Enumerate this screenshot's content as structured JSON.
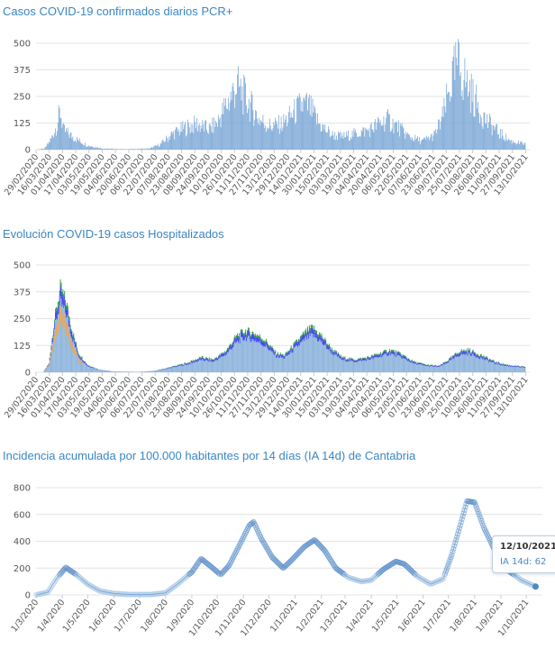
{
  "chart_data": [
    {
      "type": "bar",
      "title": "Casos COVID-19 confirmados diarios PCR+",
      "ylim": [
        0,
        500
      ],
      "yticks": [
        0,
        125,
        250,
        375,
        500
      ],
      "xlim": [
        "2020-02-29",
        "2021-10-18"
      ],
      "xtick_labels": [
        "29/02/2020",
        "16/03/2020",
        "01/04/2020",
        "17/04/2020",
        "03/05/2020",
        "19/05/2020",
        "04/06/2020",
        "20/06/2020",
        "06/07/2020",
        "22/07/2020",
        "07/08/2020",
        "23/08/2020",
        "08/09/2020",
        "24/09/2020",
        "10/10/2020",
        "26/10/2020",
        "11/11/2020",
        "27/11/2020",
        "13/12/2020",
        "29/12/2020",
        "14/01/2021",
        "30/01/2021",
        "15/02/2021",
        "03/03/2021",
        "19/03/2021",
        "04/04/2021",
        "20/04/2021",
        "06/05/2021",
        "22/05/2021",
        "07/06/2021",
        "23/06/2021",
        "09/07/2021",
        "25/07/2021",
        "10/08/2021",
        "26/08/2021",
        "11/09/2021",
        "27/09/2021",
        "13/10/2021"
      ],
      "colors": {
        "bar": "#7ba7d6"
      },
      "series": [
        {
          "values": [
            [
              "2020-02-29",
              0
            ],
            [
              "2020-03-10",
              5
            ],
            [
              "2020-03-18",
              50
            ],
            [
              "2020-03-25",
              120
            ],
            [
              "2020-03-29",
              180
            ],
            [
              "2020-04-02",
              90
            ],
            [
              "2020-04-15",
              55
            ],
            [
              "2020-05-01",
              20
            ],
            [
              "2020-05-20",
              5
            ],
            [
              "2020-06-15",
              2
            ],
            [
              "2020-07-15",
              5
            ],
            [
              "2020-07-28",
              25
            ],
            [
              "2020-08-10",
              70
            ],
            [
              "2020-08-25",
              100
            ],
            [
              "2020-09-10",
              120
            ],
            [
              "2020-09-25",
              95
            ],
            [
              "2020-10-05",
              130
            ],
            [
              "2020-10-20",
              240
            ],
            [
              "2020-10-28",
              300
            ],
            [
              "2020-11-05",
              260
            ],
            [
              "2020-11-15",
              200
            ],
            [
              "2020-11-25",
              140
            ],
            [
              "2020-12-08",
              110
            ],
            [
              "2020-12-22",
              120
            ],
            [
              "2021-01-05",
              170
            ],
            [
              "2021-01-15",
              210
            ],
            [
              "2021-01-24",
              200
            ],
            [
              "2021-02-05",
              120
            ],
            [
              "2021-02-20",
              70
            ],
            [
              "2021-03-05",
              60
            ],
            [
              "2021-03-20",
              75
            ],
            [
              "2021-04-05",
              90
            ],
            [
              "2021-04-18",
              120
            ],
            [
              "2021-04-28",
              140
            ],
            [
              "2021-05-10",
              110
            ],
            [
              "2021-05-25",
              60
            ],
            [
              "2021-06-10",
              40
            ],
            [
              "2021-06-25",
              70
            ],
            [
              "2021-07-05",
              160
            ],
            [
              "2021-07-15",
              320
            ],
            [
              "2021-07-22",
              400
            ],
            [
              "2021-07-30",
              340
            ],
            [
              "2021-08-10",
              250
            ],
            [
              "2021-08-25",
              140
            ],
            [
              "2021-09-10",
              80
            ],
            [
              "2021-09-25",
              40
            ],
            [
              "2021-10-12",
              25
            ]
          ]
        }
      ]
    },
    {
      "type": "area",
      "title": "Evolución COVID-19 casos  Hospitalizados",
      "ylim": [
        0,
        500
      ],
      "yticks": [
        0,
        125,
        250,
        375,
        500
      ],
      "xlim": [
        "2020-02-29",
        "2021-10-18"
      ],
      "xtick_labels": [
        "29/02/2020",
        "16/03/2020",
        "01/04/2020",
        "17/04/2020",
        "03/05/2020",
        "19/05/2020",
        "04/06/2020",
        "20/06/2020",
        "06/07/2020",
        "22/07/2020",
        "07/08/2020",
        "23/08/2020",
        "08/09/2020",
        "24/09/2020",
        "10/10/2020",
        "26/10/2020",
        "11/11/2020",
        "27/11/2020",
        "13/12/2020",
        "29/12/2020",
        "14/01/2021",
        "30/01/2021",
        "15/02/2021",
        "03/03/2021",
        "19/03/2021",
        "04/04/2021",
        "20/04/2021",
        "06/05/2021",
        "22/05/2021",
        "07/06/2021",
        "23/06/2021",
        "09/07/2021",
        "25/07/2021",
        "10/08/2021",
        "26/08/2021",
        "11/09/2021",
        "27/09/2021",
        "13/10/2021"
      ],
      "colors": {
        "green": "#27a03a",
        "blue": "#3b3df0",
        "orange": "#e8a95a",
        "base": "#8fb5dc"
      },
      "series": [
        {
          "values": [
            [
              "2020-02-29",
              0
            ],
            [
              "2020-03-08",
              0
            ],
            [
              "2020-03-15",
              40
            ],
            [
              "2020-03-22",
              250
            ],
            [
              "2020-03-29",
              395
            ],
            [
              "2020-04-05",
              330
            ],
            [
              "2020-04-12",
              200
            ],
            [
              "2020-04-20",
              90
            ],
            [
              "2020-05-01",
              35
            ],
            [
              "2020-05-15",
              12
            ],
            [
              "2020-06-01",
              4
            ],
            [
              "2020-07-01",
              2
            ],
            [
              "2020-07-20",
              6
            ],
            [
              "2020-08-10",
              25
            ],
            [
              "2020-08-30",
              45
            ],
            [
              "2020-09-15",
              70
            ],
            [
              "2020-09-30",
              60
            ],
            [
              "2020-10-15",
              100
            ],
            [
              "2020-10-28",
              170
            ],
            [
              "2020-11-08",
              195
            ],
            [
              "2020-11-20",
              180
            ],
            [
              "2020-12-02",
              150
            ],
            [
              "2020-12-15",
              90
            ],
            [
              "2020-12-25",
              80
            ],
            [
              "2021-01-08",
              140
            ],
            [
              "2021-01-20",
              190
            ],
            [
              "2021-01-28",
              210
            ],
            [
              "2021-02-08",
              170
            ],
            [
              "2021-02-20",
              110
            ],
            [
              "2021-03-05",
              70
            ],
            [
              "2021-03-20",
              60
            ],
            [
              "2021-04-05",
              70
            ],
            [
              "2021-04-20",
              90
            ],
            [
              "2021-05-02",
              105
            ],
            [
              "2021-05-15",
              85
            ],
            [
              "2021-05-30",
              50
            ],
            [
              "2021-06-15",
              35
            ],
            [
              "2021-06-30",
              30
            ],
            [
              "2021-07-10",
              55
            ],
            [
              "2021-07-25",
              100
            ],
            [
              "2021-08-05",
              105
            ],
            [
              "2021-08-20",
              80
            ],
            [
              "2021-09-05",
              50
            ],
            [
              "2021-09-20",
              35
            ],
            [
              "2021-10-12",
              25
            ]
          ]
        }
      ]
    },
    {
      "type": "line",
      "title": "Incidencia acumulada por 100.000 habitantes por 14 días (IA 14d) de Cantabria",
      "ylim": [
        0,
        800
      ],
      "yticks": [
        0,
        200,
        400,
        600,
        800
      ],
      "xlim": [
        "2020-03-01",
        "2021-10-20"
      ],
      "xtick_labels": [
        "1/3/2020",
        "1/4/2020",
        "1/5/2020",
        "1/6/2020",
        "1/7/2020",
        "1/8/2020",
        "1/9/2020",
        "1/10/2020",
        "1/11/2020",
        "1/12/2020",
        "1/1/2021",
        "1/2/2021",
        "1/3/2021",
        "1/4/2021",
        "1/5/2021",
        "1/6/2021",
        "1/7/2021",
        "1/8/2021",
        "1/9/2021",
        "1/10/2021"
      ],
      "colors": {
        "line": "#4a8ac6"
      },
      "series": [
        {
          "values": [
            [
              "2020-03-01",
              0
            ],
            [
              "2020-03-15",
              20
            ],
            [
              "2020-03-25",
              120
            ],
            [
              "2020-04-05",
              205
            ],
            [
              "2020-04-18",
              150
            ],
            [
              "2020-05-01",
              80
            ],
            [
              "2020-05-15",
              30
            ],
            [
              "2020-06-01",
              10
            ],
            [
              "2020-06-20",
              3
            ],
            [
              "2020-07-15",
              3
            ],
            [
              "2020-08-01",
              15
            ],
            [
              "2020-08-15",
              80
            ],
            [
              "2020-09-01",
              170
            ],
            [
              "2020-09-12",
              270
            ],
            [
              "2020-09-22",
              220
            ],
            [
              "2020-10-05",
              150
            ],
            [
              "2020-10-15",
              220
            ],
            [
              "2020-10-28",
              380
            ],
            [
              "2020-11-08",
              520
            ],
            [
              "2020-11-13",
              545
            ],
            [
              "2020-11-22",
              420
            ],
            [
              "2020-12-05",
              280
            ],
            [
              "2020-12-18",
              200
            ],
            [
              "2020-12-28",
              260
            ],
            [
              "2021-01-12",
              360
            ],
            [
              "2021-01-24",
              410
            ],
            [
              "2021-02-05",
              330
            ],
            [
              "2021-02-18",
              200
            ],
            [
              "2021-03-05",
              130
            ],
            [
              "2021-03-20",
              100
            ],
            [
              "2021-04-01",
              110
            ],
            [
              "2021-04-15",
              190
            ],
            [
              "2021-04-30",
              250
            ],
            [
              "2021-05-10",
              230
            ],
            [
              "2021-05-25",
              140
            ],
            [
              "2021-06-10",
              80
            ],
            [
              "2021-06-25",
              120
            ],
            [
              "2021-07-05",
              300
            ],
            [
              "2021-07-15",
              520
            ],
            [
              "2021-07-23",
              700
            ],
            [
              "2021-08-01",
              690
            ],
            [
              "2021-08-12",
              500
            ],
            [
              "2021-08-25",
              330
            ],
            [
              "2021-09-10",
              180
            ],
            [
              "2021-09-25",
              110
            ],
            [
              "2021-10-12",
              62
            ]
          ]
        }
      ],
      "tooltip": {
        "date": "12/10/2021",
        "text": "IA 14d: 62"
      }
    }
  ]
}
